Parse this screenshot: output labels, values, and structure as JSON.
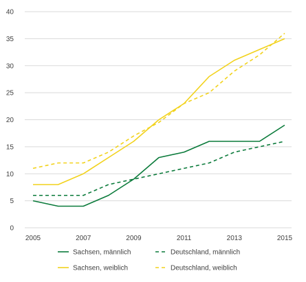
{
  "chart_data": {
    "type": "line",
    "x": [
      2005,
      2006,
      2007,
      2008,
      2009,
      2010,
      2011,
      2012,
      2013,
      2014,
      2015
    ],
    "x_tick_labels": [
      "2005",
      "2007",
      "2009",
      "2011",
      "2013",
      "2015"
    ],
    "ylim": [
      0,
      40
    ],
    "y_tick_labels": [
      "0",
      "5",
      "10",
      "15",
      "20",
      "25",
      "30",
      "35",
      "40"
    ],
    "grid": "horizontal",
    "legend_position": "bottom",
    "series": [
      {
        "name": "Sachsen, männlich",
        "color": "#0a7a3a",
        "dash": "solid",
        "values": [
          5,
          4,
          4,
          6,
          9,
          13,
          14,
          16,
          16,
          16,
          19
        ]
      },
      {
        "name": "Deutschland, männlich",
        "color": "#0a7a3a",
        "dash": "dashed",
        "values": [
          6,
          6,
          6,
          8,
          9,
          10,
          11,
          12,
          14,
          15,
          16
        ]
      },
      {
        "name": "Sachsen, weiblich",
        "color": "#f2d21b",
        "dash": "solid",
        "values": [
          8,
          8,
          10,
          13,
          16,
          20,
          23,
          28,
          31,
          33,
          35
        ]
      },
      {
        "name": "Deutschland, weiblich",
        "color": "#f2d21b",
        "dash": "dashed",
        "values": [
          11,
          12,
          12,
          14,
          17,
          19.5,
          23,
          25,
          29,
          32,
          36
        ]
      }
    ]
  }
}
